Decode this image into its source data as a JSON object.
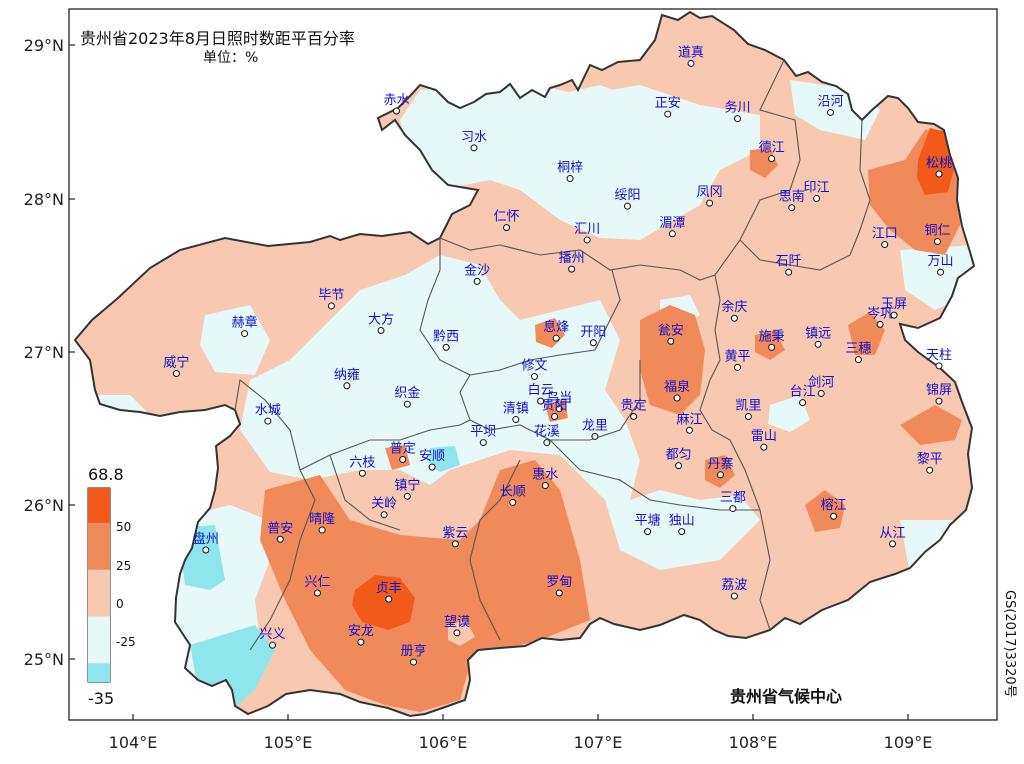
{
  "title": {
    "line1": "贵州省2023年8月日照时数距平百分率",
    "line2": "单位：%"
  },
  "credit": "贵州省气候中心",
  "map_number": "GS(2017)3320号",
  "axes": {
    "lat_ticks": [
      "29°N",
      "28°N",
      "27°N",
      "26°N",
      "25°N"
    ],
    "lon_ticks": [
      "104°E",
      "105°E",
      "106°E",
      "107°E",
      "108°E",
      "109°E"
    ]
  },
  "legend": {
    "max_label": "68.8",
    "min_label": "-35",
    "ticks": [
      "50",
      "25",
      "0",
      "-25"
    ],
    "bins": [
      {
        "from": 50,
        "to": 68.8,
        "color": "#F25A1A"
      },
      {
        "from": 25,
        "to": 50,
        "color": "#F08A5A"
      },
      {
        "from": 0,
        "to": 25,
        "color": "#F8C8B0"
      },
      {
        "from": -25,
        "to": 0,
        "color": "#E6F8F8"
      },
      {
        "from": -35,
        "to": -25,
        "color": "#8FE6EA"
      }
    ]
  },
  "colors": {
    "strong_positive": "#F25A1A",
    "positive": "#F08A5A",
    "slight_positive": "#F8C8B0",
    "slight_negative": "#E6F8F8",
    "negative": "#8FE6EA",
    "station_label": "#1010D0",
    "boundary": "#333333"
  },
  "stations": [
    {
      "name": "道真",
      "lon": 107.6,
      "lat": 28.88
    },
    {
      "name": "赤水",
      "lon": 105.7,
      "lat": 28.57
    },
    {
      "name": "正安",
      "lon": 107.45,
      "lat": 28.55
    },
    {
      "name": "务川",
      "lon": 107.9,
      "lat": 28.52
    },
    {
      "name": "沿河",
      "lon": 108.5,
      "lat": 28.56
    },
    {
      "name": "习水",
      "lon": 106.2,
      "lat": 28.33
    },
    {
      "name": "德江",
      "lon": 108.12,
      "lat": 28.26
    },
    {
      "name": "松桃",
      "lon": 109.2,
      "lat": 28.16
    },
    {
      "name": "桐梓",
      "lon": 106.82,
      "lat": 28.13
    },
    {
      "name": "绥阳",
      "lon": 107.19,
      "lat": 27.95
    },
    {
      "name": "凤冈",
      "lon": 107.72,
      "lat": 27.97
    },
    {
      "name": "印江",
      "lon": 108.41,
      "lat": 28.0
    },
    {
      "name": "思南",
      "lon": 108.25,
      "lat": 27.94
    },
    {
      "name": "仁怀",
      "lon": 106.41,
      "lat": 27.81
    },
    {
      "name": "汇川",
      "lon": 106.93,
      "lat": 27.73
    },
    {
      "name": "湄潭",
      "lon": 107.48,
      "lat": 27.77
    },
    {
      "name": "江口",
      "lon": 108.85,
      "lat": 27.7
    },
    {
      "name": "铜仁",
      "lon": 109.19,
      "lat": 27.72
    },
    {
      "name": "播州",
      "lon": 106.83,
      "lat": 27.54
    },
    {
      "name": "石阡",
      "lon": 108.23,
      "lat": 27.52
    },
    {
      "name": "金沙",
      "lon": 106.22,
      "lat": 27.46
    },
    {
      "name": "万山",
      "lon": 109.21,
      "lat": 27.52
    },
    {
      "name": "毕节",
      "lon": 105.28,
      "lat": 27.3
    },
    {
      "name": "大方",
      "lon": 105.6,
      "lat": 27.14
    },
    {
      "name": "余庆",
      "lon": 107.88,
      "lat": 27.22
    },
    {
      "name": "岑巩",
      "lon": 108.82,
      "lat": 27.18
    },
    {
      "name": "玉屏",
      "lon": 108.91,
      "lat": 27.24
    },
    {
      "name": "赫章",
      "lon": 104.72,
      "lat": 27.12
    },
    {
      "name": "息烽",
      "lon": 106.73,
      "lat": 27.09
    },
    {
      "name": "开阳",
      "lon": 106.97,
      "lat": 27.06
    },
    {
      "name": "黔西",
      "lon": 106.02,
      "lat": 27.03
    },
    {
      "name": "瓮安",
      "lon": 107.47,
      "lat": 27.07
    },
    {
      "name": "施秉",
      "lon": 108.12,
      "lat": 27.03
    },
    {
      "name": "镇远",
      "lon": 108.42,
      "lat": 27.05
    },
    {
      "name": "黄平",
      "lon": 107.9,
      "lat": 26.9
    },
    {
      "name": "三穗",
      "lon": 108.68,
      "lat": 26.95
    },
    {
      "name": "天柱",
      "lon": 109.2,
      "lat": 26.91
    },
    {
      "name": "威宁",
      "lon": 104.28,
      "lat": 26.86
    },
    {
      "name": "修文",
      "lon": 106.59,
      "lat": 26.84
    },
    {
      "name": "纳雍",
      "lon": 105.38,
      "lat": 26.78
    },
    {
      "name": "剑河",
      "lon": 108.44,
      "lat": 26.73
    },
    {
      "name": "白云",
      "lon": 106.63,
      "lat": 26.68
    },
    {
      "name": "乌当",
      "lon": 106.75,
      "lat": 26.63
    },
    {
      "name": "福泉",
      "lon": 107.51,
      "lat": 26.7
    },
    {
      "name": "台江",
      "lon": 108.32,
      "lat": 26.67
    },
    {
      "name": "织金",
      "lon": 105.77,
      "lat": 26.66
    },
    {
      "name": "清镇",
      "lon": 106.47,
      "lat": 26.56
    },
    {
      "name": "贵阳",
      "lon": 106.72,
      "lat": 26.58
    },
    {
      "name": "贵定",
      "lon": 107.23,
      "lat": 26.58
    },
    {
      "name": "凯里",
      "lon": 107.97,
      "lat": 26.58
    },
    {
      "name": "锦屏",
      "lon": 109.2,
      "lat": 26.68
    },
    {
      "name": "水城",
      "lon": 104.87,
      "lat": 26.55
    },
    {
      "name": "平坝",
      "lon": 106.26,
      "lat": 26.41
    },
    {
      "name": "花溪",
      "lon": 106.67,
      "lat": 26.41
    },
    {
      "name": "龙里",
      "lon": 106.98,
      "lat": 26.45
    },
    {
      "name": "麻江",
      "lon": 107.59,
      "lat": 26.49
    },
    {
      "name": "雷山",
      "lon": 108.07,
      "lat": 26.38
    },
    {
      "name": "普定",
      "lon": 105.74,
      "lat": 26.3
    },
    {
      "name": "安顺",
      "lon": 105.93,
      "lat": 26.25
    },
    {
      "name": "都匀",
      "lon": 107.52,
      "lat": 26.26
    },
    {
      "name": "六枝",
      "lon": 105.48,
      "lat": 26.21
    },
    {
      "name": "黎平",
      "lon": 109.14,
      "lat": 26.23
    },
    {
      "name": "丹寨",
      "lon": 107.79,
      "lat": 26.2
    },
    {
      "name": "惠水",
      "lon": 106.66,
      "lat": 26.13
    },
    {
      "name": "镇宁",
      "lon": 105.77,
      "lat": 26.06
    },
    {
      "name": "长顺",
      "lon": 106.45,
      "lat": 26.02
    },
    {
      "name": "三都",
      "lon": 107.87,
      "lat": 25.98
    },
    {
      "name": "关岭",
      "lon": 105.62,
      "lat": 25.94
    },
    {
      "name": "晴隆",
      "lon": 105.22,
      "lat": 25.84
    },
    {
      "name": "普安",
      "lon": 104.95,
      "lat": 25.78
    },
    {
      "name": "榕江",
      "lon": 108.52,
      "lat": 25.93
    },
    {
      "name": "平塘",
      "lon": 107.32,
      "lat": 25.83
    },
    {
      "name": "独山",
      "lon": 107.54,
      "lat": 25.83
    },
    {
      "name": "紫云",
      "lon": 106.08,
      "lat": 25.75
    },
    {
      "name": "从江",
      "lon": 108.9,
      "lat": 25.75
    },
    {
      "name": "盘州",
      "lon": 104.47,
      "lat": 25.71
    },
    {
      "name": "兴仁",
      "lon": 105.19,
      "lat": 25.43
    },
    {
      "name": "贞丰",
      "lon": 105.65,
      "lat": 25.39
    },
    {
      "name": "罗甸",
      "lon": 106.75,
      "lat": 25.43
    },
    {
      "name": "荔波",
      "lon": 107.88,
      "lat": 25.41
    },
    {
      "name": "望谟",
      "lon": 106.09,
      "lat": 25.17
    },
    {
      "name": "安龙",
      "lon": 105.47,
      "lat": 25.11
    },
    {
      "name": "兴义",
      "lon": 104.9,
      "lat": 25.09
    },
    {
      "name": "册亨",
      "lon": 105.81,
      "lat": 24.98
    }
  ]
}
